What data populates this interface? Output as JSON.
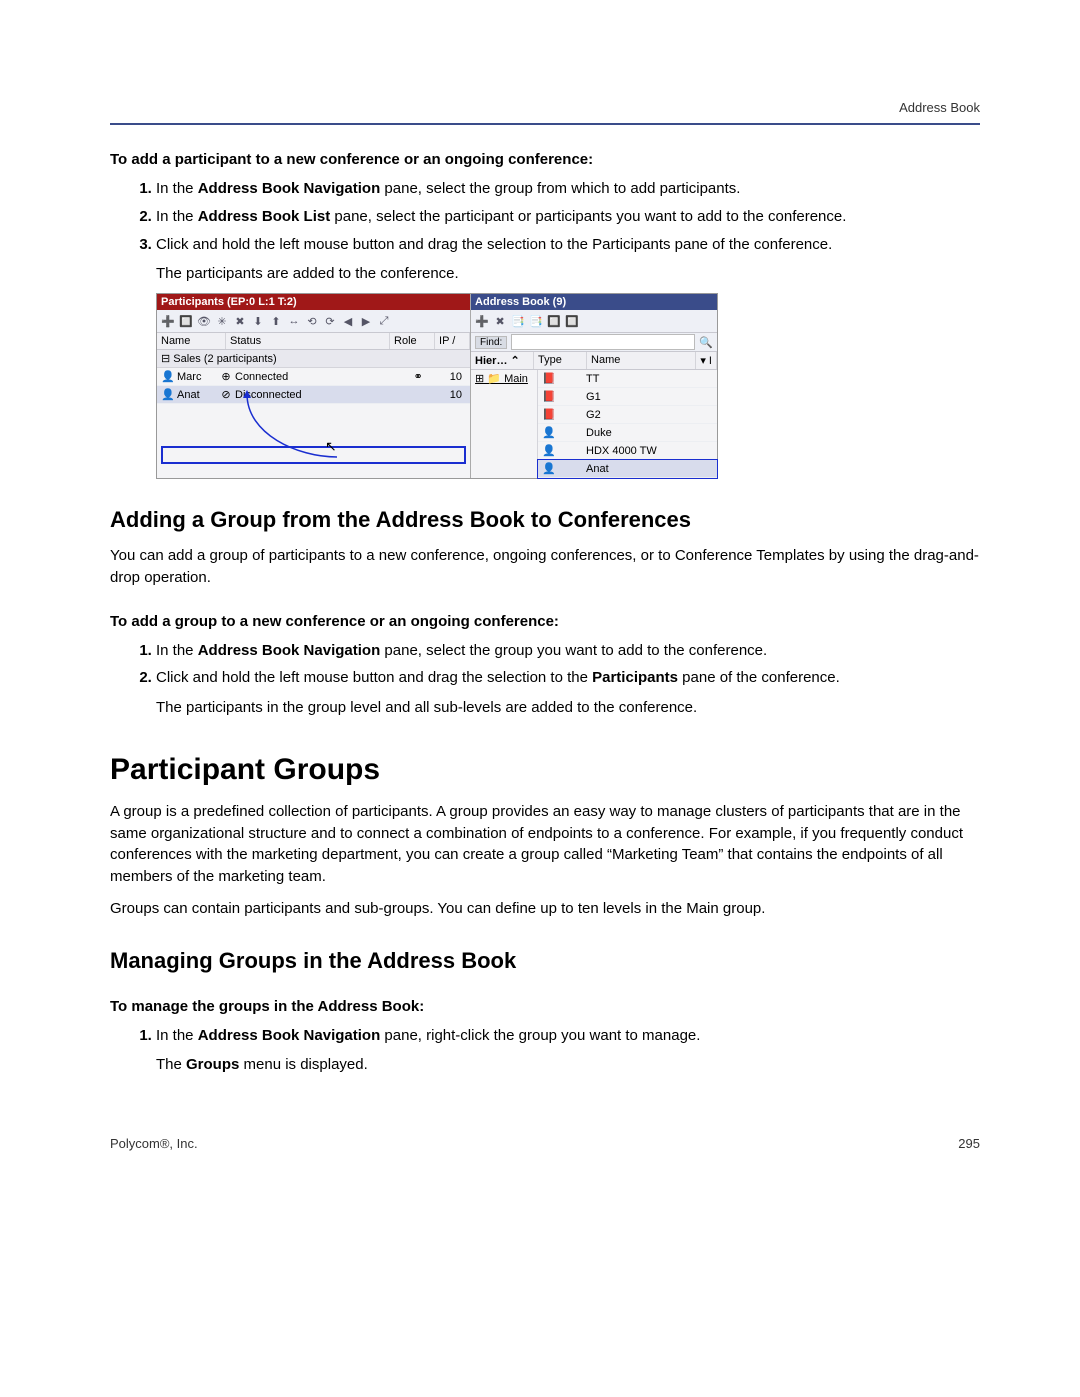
{
  "header": {
    "section_label": "Address Book"
  },
  "proc1": {
    "heading": "To add a participant to a new conference or an ongoing conference:",
    "step1_a": "In the ",
    "step1_b": "Address Book Navigation",
    "step1_c": " pane, select the group from which to add participants.",
    "step2_a": "In the ",
    "step2_b": "Address Book List",
    "step2_c": " pane, select the participant or participants you want to add to the conference.",
    "step3": "Click and hold the left mouse button and drag the selection to the Participants pane of the conference.",
    "result": "The participants are added to the conference."
  },
  "screenshot": {
    "left_title": "Participants (EP:0 L:1 T:2)",
    "right_title": "Address Book (9)",
    "cols": {
      "name": "Name",
      "status": "Status",
      "role": "Role",
      "ip": "IP /"
    },
    "group_row": "Sales (2 participants)",
    "rows": [
      {
        "name": "Marc",
        "status": "Connected",
        "ip": "10",
        "conn": "⊕",
        "role": "⚭"
      },
      {
        "name": "Anat",
        "status": "Disconnected",
        "ip": "10",
        "conn": "⊘",
        "role": ""
      }
    ],
    "find_label": "Find:",
    "find_icon": "🔍",
    "ab_cols": {
      "hier": "Hier…  ⌃",
      "type": "Type",
      "name": "Name",
      "filter": "▾ I"
    },
    "tree_node": "⊞ 📁 Main",
    "ab_rows": [
      {
        "icon": "📕",
        "name": "TT"
      },
      {
        "icon": "📕",
        "name": "G1"
      },
      {
        "icon": "📕",
        "name": "G2"
      },
      {
        "icon": "👤",
        "name": "Duke"
      },
      {
        "icon": "👤",
        "name": "HDX 4000 TW"
      },
      {
        "icon": "👤",
        "name": "Anat"
      }
    ],
    "toolbar_left": [
      "➕",
      "🔲",
      "👁",
      "✳",
      "✖",
      "⬇",
      "⬆",
      "↔",
      "⟲",
      "⟳",
      "◀",
      "▶",
      "⤢"
    ],
    "toolbar_right": [
      "➕",
      "✖",
      "📑",
      "📑",
      "🔲",
      "🔲"
    ]
  },
  "section_adding_group": {
    "title": "Adding a Group from the Address Book to Conferences",
    "body": "You can add a group of participants to a new conference, ongoing conferences, or to Conference Templates by using the drag-and-drop operation."
  },
  "proc2": {
    "heading": "To add a group to a new conference or an ongoing conference:",
    "step1_a": "In the ",
    "step1_b": "Address Book Navigation",
    "step1_c": " pane, select the group you want to add to the conference.",
    "step2_a": "Click and hold the left mouse button and drag the selection to the ",
    "step2_b": "Participants",
    "step2_c": " pane of the conference.",
    "result": "The participants in the group level and all sub-levels are added to the conference."
  },
  "major": {
    "title": "Participant Groups",
    "body1": "A group is a predefined collection of participants. A group provides an easy way to manage clusters of participants that are in the same organizational structure and to connect a combination of endpoints to a conference. For example, if you frequently conduct conferences with the marketing department, you can create a group called “Marketing Team” that contains the endpoints of all members of the marketing team.",
    "body2": "Groups can contain participants and sub-groups. You can define up to ten levels in the Main group."
  },
  "section_managing": {
    "title": "Managing Groups in the Address Book"
  },
  "proc3": {
    "heading": "To manage the groups in the Address Book:",
    "step1_a": "In the ",
    "step1_b": "Address Book Navigation",
    "step1_c": " pane, right-click the group you want to manage.",
    "result_a": "The ",
    "result_b": "Groups",
    "result_c": " menu is displayed."
  },
  "footer": {
    "company": "Polycom®, Inc.",
    "page": "295"
  }
}
